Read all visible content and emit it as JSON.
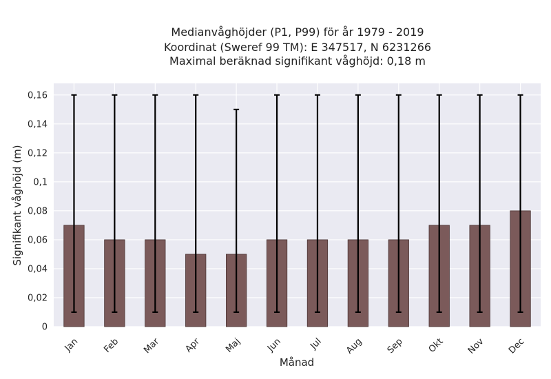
{
  "chart_data": {
    "type": "bar",
    "title_lines": [
      "Medianvåghöjder (P1, P99) för år 1979 - 2019",
      "Koordinat (Sweref 99 TM): E 347517, N 6231266",
      "Maximal beräknad signifikant våghöjd: 0,18 m"
    ],
    "xlabel": "Månad",
    "ylabel": "Signifikant våghöjd (m)",
    "categories": [
      "Jan",
      "Feb",
      "Mar",
      "Apr",
      "Maj",
      "Jun",
      "Jul",
      "Aug",
      "Sep",
      "Okt",
      "Nov",
      "Dec"
    ],
    "values": [
      0.07,
      0.06,
      0.06,
      0.05,
      0.05,
      0.06,
      0.06,
      0.06,
      0.06,
      0.07,
      0.07,
      0.08
    ],
    "p1": [
      0.01,
      0.01,
      0.01,
      0.01,
      0.01,
      0.01,
      0.01,
      0.01,
      0.01,
      0.01,
      0.01,
      0.01
    ],
    "p99": [
      0.16,
      0.16,
      0.16,
      0.16,
      0.15,
      0.16,
      0.16,
      0.16,
      0.16,
      0.16,
      0.16,
      0.16
    ],
    "ylim": [
      0,
      0.168
    ],
    "yticks": [
      0,
      0.02,
      0.04,
      0.06,
      0.08,
      0.1,
      0.12,
      0.14,
      0.16
    ],
    "ytick_labels": [
      "0",
      "0,02",
      "0,04",
      "0,06",
      "0,08",
      "0,1",
      "0,12",
      "0,14",
      "0,16"
    ],
    "grid": true,
    "colors": {
      "bar": "#7b5a5a",
      "bar_edge": "#4a3434",
      "error": "#000000",
      "plot_bg": "#eaeaf2",
      "grid": "#ffffff"
    }
  }
}
